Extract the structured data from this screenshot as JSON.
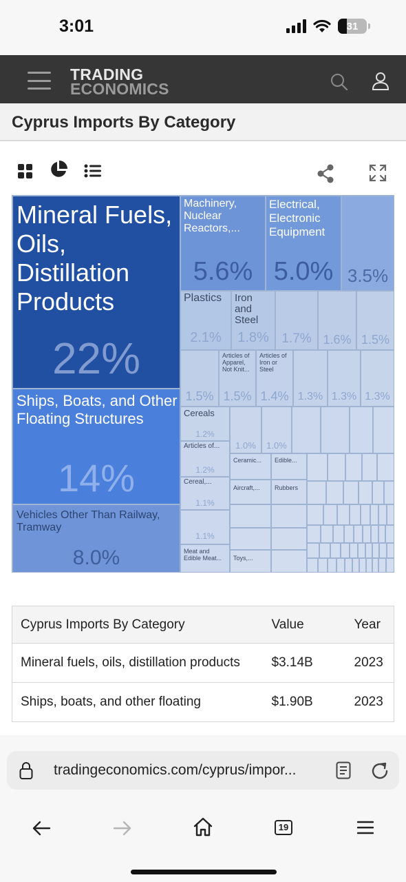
{
  "status_bar": {
    "time": "3:01",
    "battery": "31"
  },
  "header": {
    "logo_line1": "TRADING",
    "logo_line2": "ECONOMICS"
  },
  "page": {
    "title": "Cyprus Imports By Category"
  },
  "toolbar": {
    "icons": [
      "grid-view-icon",
      "pie-chart-icon",
      "list-view-icon",
      "share-icon",
      "fullscreen-icon"
    ]
  },
  "chart_data": {
    "type": "treemap",
    "items": [
      {
        "label": "Mineral Fuels, Oils, Distillation Products",
        "value_label": "22%",
        "value": 22
      },
      {
        "label": "Ships, Boats, and Other Floating Structures",
        "value_label": "14%",
        "value": 14
      },
      {
        "label": "Vehicles Other Than Railway, Tramway",
        "value_label": "8.0%",
        "value": 8.0
      },
      {
        "label": "Machinery, Nuclear Reactors,...",
        "value_label": "5.6%",
        "value": 5.6
      },
      {
        "label": "Electrical, Electronic Equipment",
        "value_label": "5.0%",
        "value": 5.0
      },
      {
        "label": "",
        "value_label": "3.5%",
        "value": 3.5
      },
      {
        "label": "Plastics",
        "value_label": "2.1%",
        "value": 2.1
      },
      {
        "label": "Iron and Steel",
        "value_label": "1.8%",
        "value": 1.8
      },
      {
        "label": "",
        "value_label": "1.7%",
        "value": 1.7
      },
      {
        "label": "",
        "value_label": "1.6%",
        "value": 1.6
      },
      {
        "label": "",
        "value_label": "1.5%",
        "value": 1.5
      },
      {
        "label": "",
        "value_label": "1.5%",
        "value": 1.5
      },
      {
        "label": "Articles of Apparel, Not Knit...",
        "value_label": "1.5%",
        "value": 1.5
      },
      {
        "label": "Articles of Iron or Steel",
        "value_label": "1.4%",
        "value": 1.4
      },
      {
        "label": "",
        "value_label": "1.3%",
        "value": 1.3
      },
      {
        "label": "",
        "value_label": "1.3%",
        "value": 1.3
      },
      {
        "label": "",
        "value_label": "1.3%",
        "value": 1.3
      },
      {
        "label": "Cereals",
        "value_label": "1.2%",
        "value": 1.2
      },
      {
        "label": "Articles of...",
        "value_label": "1.2%",
        "value": 1.2
      },
      {
        "label": "Cereal,...",
        "value_label": "1.1%",
        "value": 1.1
      },
      {
        "label": "",
        "value_label": "1.1%",
        "value": 1.1
      },
      {
        "label": "",
        "value_label": "1.0%",
        "value": 1.0
      },
      {
        "label": "",
        "value_label": "1.0%",
        "value": 1.0
      },
      {
        "label": "Ceramic...",
        "value_label": "",
        "value": null
      },
      {
        "label": "Edible...",
        "value_label": "",
        "value": null
      },
      {
        "label": "Aircraft,...",
        "value_label": "",
        "value": null
      },
      {
        "label": "Rubbers",
        "value_label": "",
        "value": null
      },
      {
        "label": "Meat and Edible Meat...",
        "value_label": "",
        "value": null
      },
      {
        "label": "Toys,...",
        "value_label": "",
        "value": null
      }
    ]
  },
  "table": {
    "headers": [
      "Cyprus Imports By Category",
      "Value",
      "Year"
    ],
    "rows": [
      {
        "category": "Mineral fuels, oils, distillation products",
        "value": "$3.14B",
        "year": "2023"
      },
      {
        "category": "Ships, boats, and other floating",
        "value": "$1.90B",
        "year": "2023"
      }
    ]
  },
  "browser": {
    "url": "tradingeconomics.com/cyprus/impor...",
    "tab_count": "19"
  },
  "colors": {
    "header_bg": "#363636",
    "tile_darkest": "#2150a2",
    "tile_dark": "#4a7fdc",
    "tile_mid": "#6f95d8",
    "tile_light": "#b9cbe6",
    "tile_lightest": "#d4deed"
  }
}
